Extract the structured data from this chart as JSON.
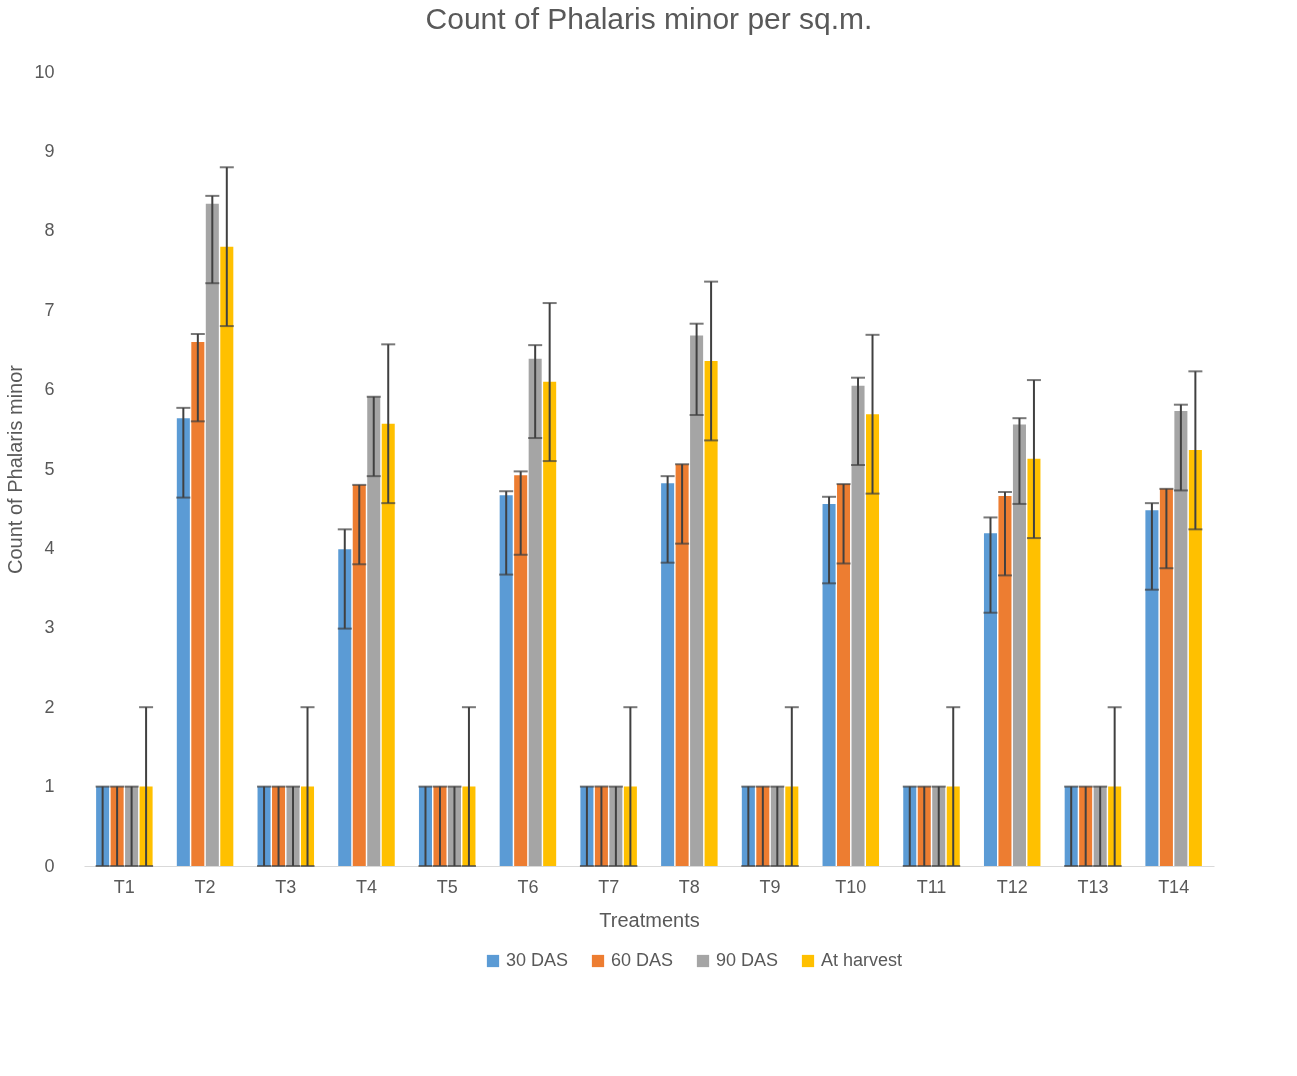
{
  "chart_data": {
    "type": "bar",
    "title": "Count of Phalaris minor per sq.m.",
    "xlabel": "Treatments",
    "ylabel": "Count of Phalaris minor",
    "categories": [
      "T1",
      "T2",
      "T3",
      "T4",
      "T5",
      "T6",
      "T7",
      "T8",
      "T9",
      "T10",
      "T11",
      "T12",
      "T13",
      "T14"
    ],
    "series": [
      {
        "name": "30 DAS",
        "color": "#5b9bd5",
        "values": [
          1,
          5.64,
          1,
          3.99,
          1,
          4.67,
          1,
          4.82,
          1,
          4.56,
          1,
          4.19,
          1,
          4.48
        ],
        "errors": [
          [
            0,
            1
          ],
          [
            4.64,
            5.77
          ],
          [
            0,
            1
          ],
          [
            2.99,
            4.24
          ],
          [
            0,
            1
          ],
          [
            3.67,
            4.72
          ],
          [
            0,
            1
          ],
          [
            3.82,
            4.91
          ],
          [
            0,
            1
          ],
          [
            3.56,
            4.65
          ],
          [
            0,
            1
          ],
          [
            3.19,
            4.39
          ],
          [
            0,
            1
          ],
          [
            3.48,
            4.57
          ]
        ]
      },
      {
        "name": "60 DAS",
        "color": "#ed7d31",
        "values": [
          1,
          6.6,
          1,
          4.8,
          1,
          4.92,
          1,
          5.06,
          1,
          4.81,
          1,
          4.66,
          1,
          4.75
        ],
        "errors": [
          [
            0,
            1
          ],
          [
            5.6,
            6.7
          ],
          [
            0,
            1
          ],
          [
            3.8,
            4.8
          ],
          [
            0,
            1
          ],
          [
            3.92,
            4.97
          ],
          [
            0,
            1
          ],
          [
            4.06,
            5.06
          ],
          [
            0,
            1
          ],
          [
            3.81,
            4.81
          ],
          [
            0,
            1
          ],
          [
            3.66,
            4.71
          ],
          [
            0,
            1
          ],
          [
            3.75,
            4.75
          ]
        ]
      },
      {
        "name": "90 DAS",
        "color": "#a5a5a5",
        "values": [
          1,
          8.34,
          1,
          5.91,
          1,
          6.39,
          1,
          6.68,
          1,
          6.05,
          1,
          5.56,
          1,
          5.73
        ],
        "errors": [
          [
            0,
            1
          ],
          [
            7.34,
            8.44
          ],
          [
            0,
            1
          ],
          [
            4.91,
            5.91
          ],
          [
            0,
            1
          ],
          [
            5.39,
            6.56
          ],
          [
            0,
            1
          ],
          [
            5.68,
            6.83
          ],
          [
            0,
            1
          ],
          [
            5.05,
            6.15
          ],
          [
            0,
            1
          ],
          [
            4.56,
            5.64
          ],
          [
            0,
            1
          ],
          [
            4.73,
            5.81
          ]
        ]
      },
      {
        "name": "At harvest",
        "color": "#ffc000",
        "values": [
          1,
          7.8,
          1,
          5.57,
          1,
          6.1,
          1,
          6.36,
          1,
          5.69,
          1,
          5.13,
          1,
          5.24
        ],
        "errors": [
          [
            0,
            2
          ],
          [
            6.8,
            8.8
          ],
          [
            0,
            2
          ],
          [
            4.57,
            6.57
          ],
          [
            0,
            2
          ],
          [
            5.1,
            7.09
          ],
          [
            0,
            2
          ],
          [
            5.36,
            7.36
          ],
          [
            0,
            2
          ],
          [
            4.69,
            6.69
          ],
          [
            0,
            2
          ],
          [
            4.13,
            6.12
          ],
          [
            0,
            2
          ],
          [
            4.24,
            6.23
          ]
        ]
      }
    ],
    "ylim": [
      0,
      10
    ],
    "yticks": [
      0,
      1,
      2,
      3,
      4,
      5,
      6,
      7,
      8,
      9,
      10
    ],
    "legend": "bottom"
  }
}
